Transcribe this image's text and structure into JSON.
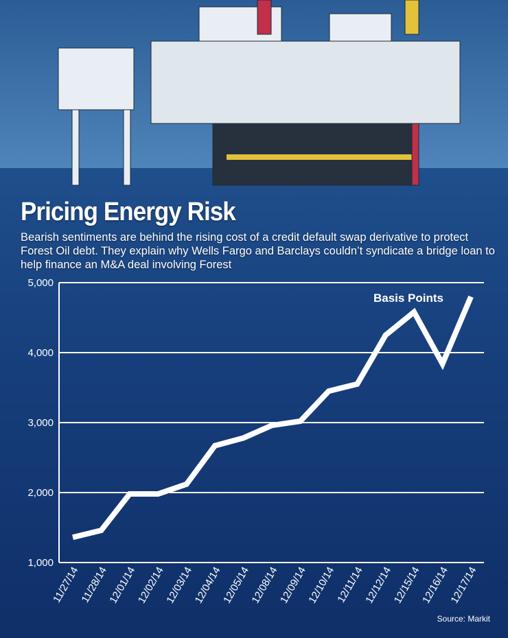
{
  "chart_data": {
    "type": "line",
    "title": "Pricing Energy Risk",
    "subtitle": "Bearish sentiments are behind the rising cost of a credit default swap derivative to protect Forest Oil debt. They explain why Wells Fargo and Barclays couldn’t syndicate a bridge loan to help finance an M&A deal involving Forest",
    "categories": [
      "11/27/14",
      "11/28/14",
      "12/01/14",
      "12/02/14",
      "12/03/14",
      "12/04/14",
      "12/05/14",
      "12/08/14",
      "12/09/14",
      "12/10/14",
      "12/11/14",
      "12/12/14",
      "12/15/14",
      "12/16/14",
      "12/17/14"
    ],
    "series": [
      {
        "name": "Basis Points",
        "color": "#ffffff",
        "values": [
          1360,
          1460,
          1980,
          1980,
          2120,
          2670,
          2780,
          2960,
          3020,
          3450,
          3550,
          4250,
          4580,
          3840,
          4800
        ]
      }
    ],
    "ylim": [
      1000,
      5000
    ],
    "yticks": [
      {
        "value": 1000,
        "label": "1,000"
      },
      {
        "value": 2000,
        "label": "2,000"
      },
      {
        "value": 3000,
        "label": "3,000"
      },
      {
        "value": 4000,
        "label": "4,000"
      },
      {
        "value": 5000,
        "label": "5,000"
      }
    ],
    "grid": true,
    "source": "Source: Markit"
  }
}
